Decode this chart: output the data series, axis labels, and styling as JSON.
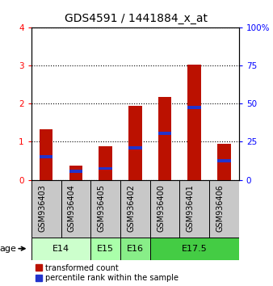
{
  "title": "GDS4591 / 1441884_x_at",
  "samples": [
    "GSM936403",
    "GSM936404",
    "GSM936405",
    "GSM936402",
    "GSM936400",
    "GSM936401",
    "GSM936406"
  ],
  "transformed_counts": [
    1.32,
    0.38,
    0.88,
    1.93,
    2.18,
    3.02,
    0.95
  ],
  "percentile_ranks_pct": [
    15.0,
    5.5,
    7.5,
    21.0,
    30.5,
    47.5,
    12.5
  ],
  "age_groups": [
    {
      "label": "E14",
      "span": [
        0,
        1
      ],
      "color": "#ccffcc"
    },
    {
      "label": "E15",
      "span": [
        2,
        2
      ],
      "color": "#aaffaa"
    },
    {
      "label": "E16",
      "span": [
        3,
        3
      ],
      "color": "#88ee88"
    },
    {
      "label": "E17.5",
      "span": [
        4,
        6
      ],
      "color": "#44cc44"
    }
  ],
  "left_ylim": [
    0,
    4
  ],
  "left_yticks": [
    0,
    1,
    2,
    3,
    4
  ],
  "right_ylim": [
    0,
    100
  ],
  "right_yticks": [
    0,
    25,
    50,
    75,
    100
  ],
  "right_yticklabels": [
    "0",
    "25",
    "50",
    "75",
    "100%"
  ],
  "bar_color_red": "#bb1100",
  "bar_color_blue": "#2233cc",
  "bar_width": 0.45,
  "bg_color_sample": "#c8c8c8",
  "bg_color_age_e14": "#ccffcc",
  "bg_color_age_e15": "#aaffaa",
  "bg_color_age_e16": "#88ee88",
  "bg_color_age_e175": "#44cc44",
  "legend_red_label": "transformed count",
  "legend_blue_label": "percentile rank within the sample",
  "age_label": "age",
  "title_fontsize": 10,
  "tick_fontsize": 7.5,
  "label_fontsize": 7,
  "legend_fontsize": 7,
  "age_fontsize": 8
}
